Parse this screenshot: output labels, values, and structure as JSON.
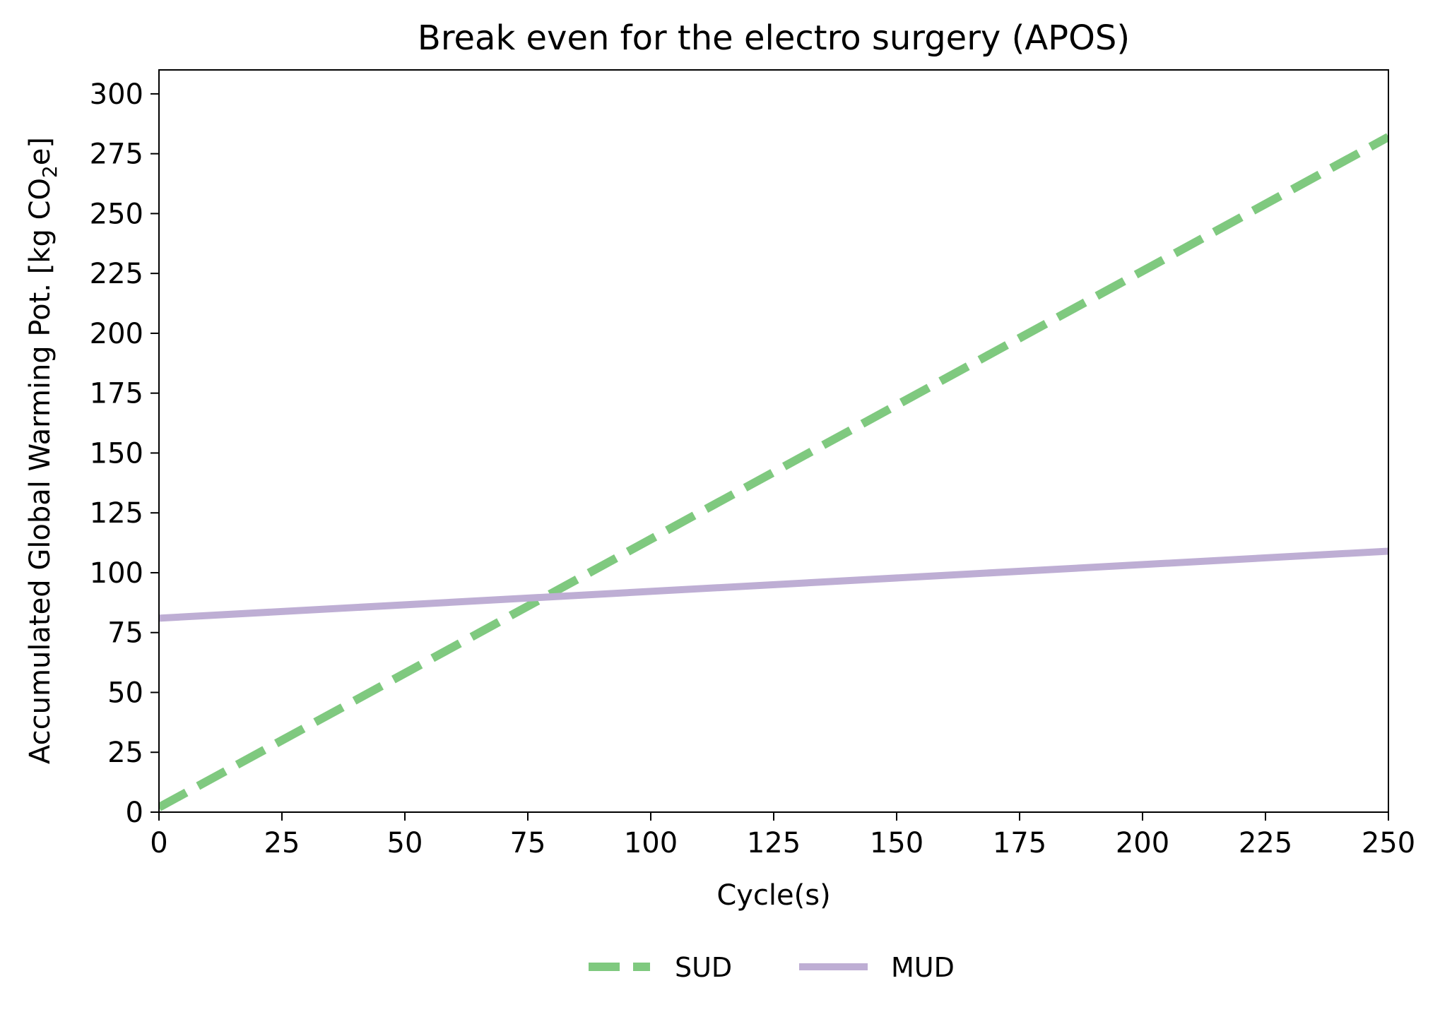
{
  "chart_data": {
    "type": "line",
    "title": "Break even for the electro surgery (APOS)",
    "xlabel": "Cycle(s)",
    "ylabel_main": "Accumulated Global Warming Pot. [kg CO",
    "ylabel_sub": "2",
    "ylabel_end": "e]",
    "xlim": [
      0,
      250
    ],
    "ylim": [
      0,
      310
    ],
    "x_ticks": [
      0,
      25,
      50,
      75,
      100,
      125,
      150,
      175,
      200,
      225,
      250
    ],
    "y_ticks": [
      0,
      25,
      50,
      75,
      100,
      125,
      150,
      175,
      200,
      225,
      250,
      275,
      300
    ],
    "grid": false,
    "legend_position": "bottom-center",
    "series": [
      {
        "name": "SUD",
        "color": "#7fc97f",
        "style": "dashed",
        "x": [
          0,
          250
        ],
        "y": [
          2,
          282
        ]
      },
      {
        "name": "MUD",
        "color": "#beaed4",
        "style": "solid",
        "x": [
          0,
          250
        ],
        "y": [
          81,
          109
        ]
      }
    ]
  }
}
